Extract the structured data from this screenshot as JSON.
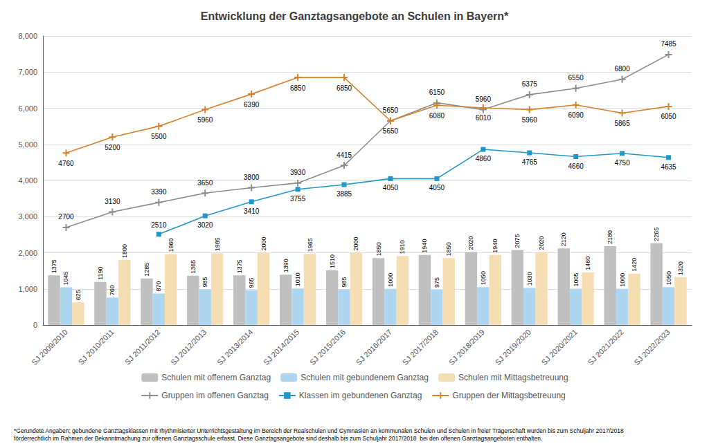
{
  "chart_data": {
    "type": "bar",
    "title": "Entwicklung der Ganztagsangebote an Schulen in Bayern*",
    "footnote": "*Gerundete Angaben; gebundene Ganztagsklassen mit rhythmisierter Unterrichtsgestaltung im Bereich der Realschulen und Gymnasien an kommunalen Schulen und Schulen in freier Trägerschaft wurden bis zum Schuljahr 2017/2018\nförderrechtlich im Rahmen der Bekanntmachung zur offenen Ganztagsschule erfasst. Diese Ganztagsangebote sind deshalb bis zum Schuljahr 2017/2018  bei den offenen Ganztagsangeboten enthalten.",
    "categories": [
      "SJ 2009/2010",
      "SJ 2010/2011",
      "SJ 2011/2012",
      "SJ 2012/2013",
      "SJ 2013/2014",
      "SJ 2014/2015",
      "SJ 2015/2016",
      "SJ 2016/2017",
      "SJ 2017/2018",
      "SJ 2018/2019",
      "SJ 2019/2020",
      "SJ 2020/2021",
      "SJ 2021/2022",
      "SJ 2022/2023"
    ],
    "series": [
      {
        "name": "Schulen mit offenem Ganztag",
        "type": "bar",
        "color": "#C0C0C0",
        "values": [
          1375,
          1190,
          1285,
          1365,
          1375,
          1390,
          1510,
          1850,
          1940,
          2020,
          2075,
          2120,
          2180,
          2265
        ]
      },
      {
        "name": "Schulen mit gebundenem Ganztag",
        "type": "bar",
        "color": "#AED6F0",
        "values": [
          1045,
          760,
          870,
          985,
          965,
          1010,
          985,
          1000,
          975,
          1050,
          1030,
          1005,
          1000,
          1050
        ]
      },
      {
        "name": "Schulen mit Mittagsbetreuung",
        "type": "bar",
        "color": "#F5DEB3",
        "values": [
          625,
          1800,
          1960,
          1985,
          2000,
          1965,
          2000,
          1910,
          1850,
          1940,
          2020,
          1460,
          1420,
          1320
        ]
      },
      {
        "name": "Gruppen im offenen Ganztag",
        "type": "line",
        "color": "#8C8C8C",
        "marker": "plus",
        "values": [
          2700,
          3130,
          3390,
          3650,
          3800,
          3930,
          4415,
          5650,
          6150,
          5960,
          6375,
          6550,
          6800,
          7485
        ]
      },
      {
        "name": "Klassen im gebundenen Ganztag",
        "type": "line",
        "color": "#2196C8",
        "marker": "square",
        "values": [
          null,
          null,
          2510,
          3020,
          3410,
          3755,
          3885,
          4050,
          4050,
          4860,
          4765,
          4660,
          4750,
          4635
        ]
      },
      {
        "name": "Gruppen der Mittagsbetreuung",
        "type": "line",
        "color": "#D4812A",
        "marker": "plus",
        "values": [
          4760,
          5200,
          5500,
          5960,
          6390,
          6850,
          6850,
          5650,
          6080,
          6010,
          5960,
          6090,
          5865,
          6050
        ]
      }
    ],
    "ylim": [
      0,
      8000
    ],
    "yticks": [
      0,
      1000,
      2000,
      3000,
      4000,
      5000,
      6000,
      7000,
      8000
    ],
    "grid": true,
    "data_labels": true,
    "legend": "bottom"
  }
}
